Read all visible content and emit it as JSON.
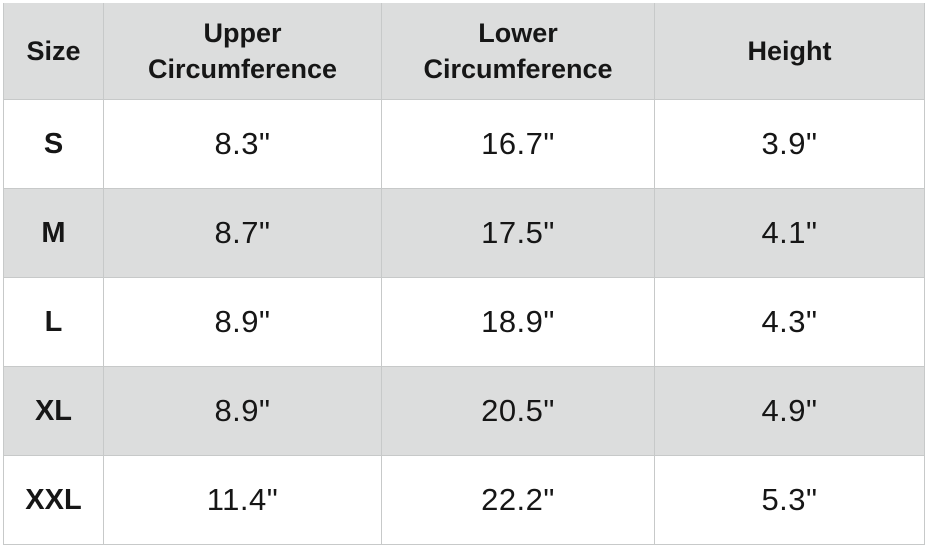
{
  "chart_data": {
    "type": "table",
    "columns": [
      "Size",
      "Upper Circumference",
      "Lower Circumference",
      "Height"
    ],
    "rows": [
      {
        "size": "S",
        "upper_circumference": "8.3\"",
        "lower_circumference": "16.7\"",
        "height": "3.9\""
      },
      {
        "size": "M",
        "upper_circumference": "8.7\"",
        "lower_circumference": "17.5\"",
        "height": "4.1\""
      },
      {
        "size": "L",
        "upper_circumference": "8.9\"",
        "lower_circumference": "18.9\"",
        "height": "4.3\""
      },
      {
        "size": "XL",
        "upper_circumference": "8.9\"",
        "lower_circumference": "20.5\"",
        "height": "4.9\""
      },
      {
        "size": "XXL",
        "upper_circumference": "11.4\"",
        "lower_circumference": "22.2\"",
        "height": "5.3\""
      }
    ],
    "layout": {
      "header_row": true,
      "alternating_rows": [
        "white",
        "gray"
      ],
      "text_align": "center"
    }
  },
  "colors": {
    "header_bg": "#dcdddd",
    "row_alt_bg": "#dcdddd",
    "row_bg": "#ffffff",
    "border": "#c7c9c9",
    "text": "#161616",
    "page_bg": "#ffffff"
  }
}
